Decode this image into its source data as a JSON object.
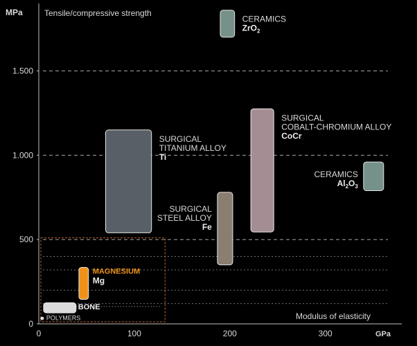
{
  "chart_data": {
    "type": "range-bar",
    "title": "Tensile/compressive strength",
    "ylabel": "MPa",
    "xlabel": "Modulus of elasticity",
    "xunit": "GPa",
    "xlim": [
      0,
      380
    ],
    "ylim": [
      0,
      1900
    ],
    "xticks": [
      0,
      100,
      200,
      300
    ],
    "yticks": [
      0,
      500,
      1000,
      1500
    ],
    "ytick_labels": [
      "0",
      "500",
      "1.000",
      "1.500"
    ],
    "grid": "dashed horizontal reference lines",
    "highlight_box": {
      "x": [
        0,
        130
      ],
      "y": [
        0,
        510
      ]
    },
    "series": [
      {
        "label_lines": [
          "CERAMICS"
        ],
        "symbol": "ZrO",
        "subscript": "2",
        "x": [
          190,
          205
        ],
        "y": [
          1700,
          1860
        ],
        "color": "#76908a"
      },
      {
        "label_lines": [
          "SURGICAL",
          "TITANIUM ALLOY"
        ],
        "symbol": "Ti",
        "x": [
          70,
          118
        ],
        "y": [
          540,
          1150
        ],
        "color": "#585f66"
      },
      {
        "label_lines": [
          "SURGICAL",
          "COBALT-CHROMIUM ALLOY"
        ],
        "symbol": "CoCr",
        "x": [
          222,
          246
        ],
        "y": [
          545,
          1275
        ],
        "color": "#a58e93"
      },
      {
        "label_lines": [
          "CERAMICS"
        ],
        "symbol": "Al",
        "subscript": "2",
        "symbol2": "O",
        "subscript2": "3",
        "x": [
          340,
          361
        ],
        "y": [
          790,
          960
        ],
        "color": "#76908a"
      },
      {
        "label_lines": [
          "SURGICAL",
          "STEEL ALLOY"
        ],
        "symbol": "Fe",
        "x": [
          187,
          203
        ],
        "y": [
          350,
          780
        ],
        "color": "#8a7e70"
      },
      {
        "label_lines": [
          "MAGNESIUM"
        ],
        "symbol": "Mg",
        "x": [
          42,
          52
        ],
        "y": [
          145,
          335
        ],
        "color": "#f0921a"
      },
      {
        "label_lines": [
          "BONE"
        ],
        "x": [
          5,
          39
        ],
        "y": [
          65,
          125
        ],
        "color": "#dcdcdc"
      },
      {
        "label_lines": [
          "POLYMERS"
        ],
        "x": [
          2,
          5
        ],
        "y": [
          25,
          40
        ],
        "color": "#dcdcdc"
      }
    ]
  },
  "colors": {
    "background": "#000000",
    "axis": "#bfbfbf",
    "text": "#d9d9d9",
    "accent": "#f0921a"
  }
}
